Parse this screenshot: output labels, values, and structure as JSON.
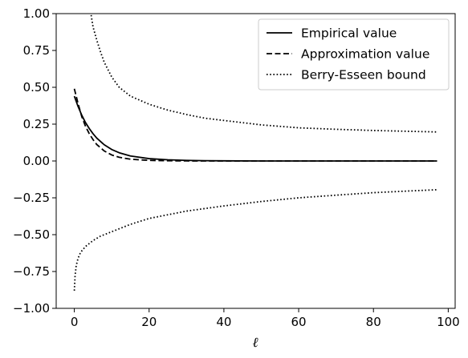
{
  "chart_data": {
    "type": "line",
    "title": "",
    "xlabel": "ℓ",
    "ylabel": "",
    "xlim": [
      -4.85,
      101.85
    ],
    "ylim": [
      -1.0,
      1.0
    ],
    "xticks": [
      0,
      20,
      40,
      60,
      80,
      100
    ],
    "xtick_labels": [
      "0",
      "20",
      "40",
      "60",
      "80",
      "100"
    ],
    "yticks": [
      -1.0,
      -0.75,
      -0.5,
      -0.25,
      0.0,
      0.25,
      0.5,
      0.75,
      1.0
    ],
    "ytick_labels": [
      "−1.00",
      "−0.75",
      "−0.50",
      "−0.25",
      "0.00",
      "0.25",
      "0.50",
      "0.75",
      "1.00"
    ],
    "grid": false,
    "legend_position": "top-right",
    "series": [
      {
        "name": "Empirical value",
        "style": "solid",
        "color": "#000000",
        "x": [
          0,
          1,
          2,
          3,
          4,
          5,
          6,
          8,
          10,
          12,
          15,
          20,
          25,
          30,
          35,
          40,
          50,
          60,
          70,
          80,
          90,
          97
        ],
        "y": [
          0.44,
          0.37,
          0.31,
          0.26,
          0.22,
          0.185,
          0.155,
          0.11,
          0.078,
          0.056,
          0.034,
          0.016,
          0.008,
          0.004,
          0.002,
          0.001,
          0.0,
          0.0,
          0.0,
          0.0,
          0.0,
          0.0
        ]
      },
      {
        "name": "Approximation value",
        "style": "dashed",
        "color": "#000000",
        "x": [
          0,
          1,
          2,
          3,
          4,
          5,
          6,
          8,
          10,
          12,
          15,
          20,
          25,
          30,
          40,
          50,
          60,
          70,
          80,
          90,
          97
        ],
        "y": [
          0.49,
          0.39,
          0.3,
          0.235,
          0.185,
          0.145,
          0.112,
          0.068,
          0.041,
          0.025,
          0.012,
          0.004,
          0.0015,
          0.0005,
          0.0,
          0.0,
          0.0,
          0.0,
          0.0,
          0.0,
          0.0
        ]
      },
      {
        "name": "Berry-Esseen bound",
        "style": "dotted",
        "color": "#000000",
        "x": [
          4.5,
          5,
          6,
          7,
          8,
          10,
          12,
          15,
          20,
          25,
          30,
          35,
          40,
          50,
          60,
          70,
          80,
          90,
          97
        ],
        "y": [
          0.99,
          0.91,
          0.82,
          0.74,
          0.67,
          0.57,
          0.5,
          0.44,
          0.385,
          0.345,
          0.315,
          0.29,
          0.275,
          0.245,
          0.225,
          0.215,
          0.207,
          0.201,
          0.197
        ]
      },
      {
        "name": "Berry-Esseen bound",
        "style": "dotted",
        "color": "#000000",
        "show_in_legend": false,
        "x": [
          0,
          0.2,
          0.5,
          1,
          1.5,
          2,
          3,
          4,
          5,
          7,
          10,
          15,
          20,
          30,
          40,
          50,
          60,
          70,
          80,
          90,
          97
        ],
        "y": [
          -0.88,
          -0.78,
          -0.71,
          -0.66,
          -0.63,
          -0.61,
          -0.58,
          -0.56,
          -0.54,
          -0.51,
          -0.48,
          -0.43,
          -0.39,
          -0.34,
          -0.305,
          -0.275,
          -0.25,
          -0.232,
          -0.215,
          -0.203,
          -0.195
        ]
      }
    ]
  }
}
